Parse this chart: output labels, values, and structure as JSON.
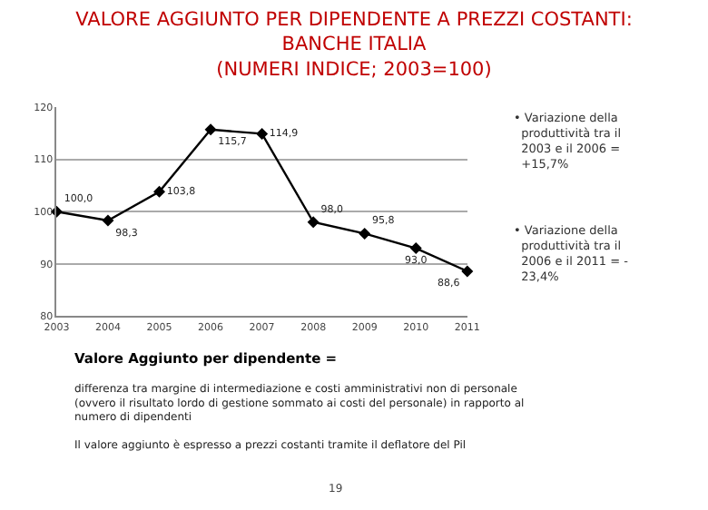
{
  "chart_data": {
    "type": "line",
    "title": "VALORE AGGIUNTO PER DIPENDENTE A PREZZI COSTANTI:\nBANCHE ITALIA\n(NUMERI INDICE; 2003=100)",
    "categories": [
      "2003",
      "2004",
      "2005",
      "2006",
      "2007",
      "2008",
      "2009",
      "2010",
      "2011"
    ],
    "series": [
      {
        "color": "#000000",
        "values": [
          100.0,
          98.3,
          103.8,
          115.7,
          114.9,
          98.0,
          95.8,
          93.0,
          88.6
        ],
        "value_labels": [
          "100,0",
          "98,3",
          "103,8",
          "115,7",
          "114,9",
          "98,0",
          "95,8",
          "93,0",
          "88,6"
        ]
      }
    ],
    "ylim": [
      80,
      120
    ],
    "yticks": [
      80,
      90,
      100,
      110,
      120
    ],
    "grid": "y",
    "marker": "diamond",
    "line_style": "solid",
    "legend": false,
    "annotations": [
      "• Variazione della\n  produttività tra il\n  2003 e il 2006 =\n  +15,7%",
      "• Variazione della\n  produttività tra il\n  2006 e il 2011 = -\n  23,4%",
      "Valore Aggiunto per dipendente =",
      "differenza tra margine di intermediazione e costi amministrativi non di personale\n(ovvero il risultato lordo di gestione sommato ai costi del personale) in rapporto al\nnumero di dipendenti",
      "Il valore aggiunto è espresso a prezzi costanti tramite il deflatore del Pil",
      "19"
    ]
  }
}
